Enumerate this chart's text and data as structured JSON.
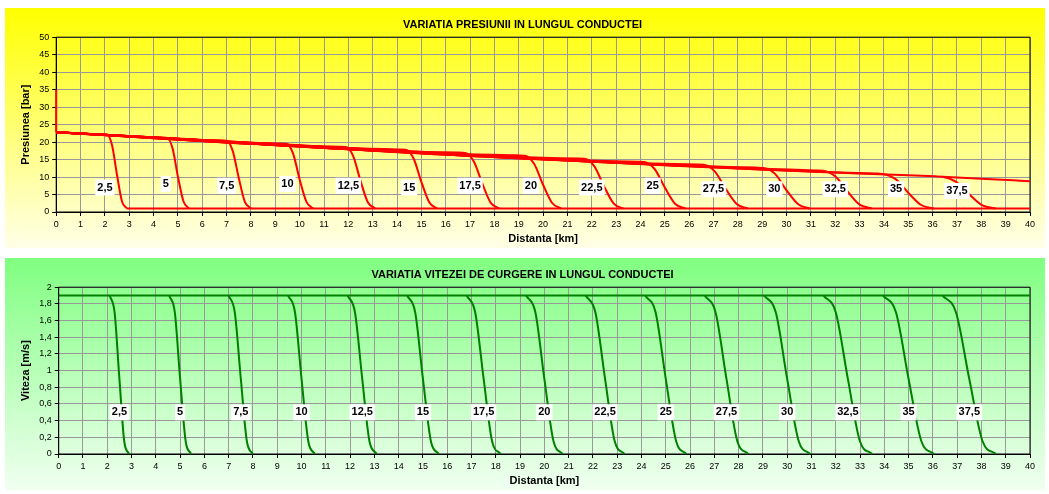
{
  "chart_data": [
    {
      "type": "line",
      "title": "VARIATIA PRESIUNII IN LUNGUL CONDUCTEI",
      "xlabel": "Distanta [km]",
      "ylabel": "Presiunea [bar]",
      "xlim": [
        0,
        40
      ],
      "xticks": [
        0,
        1,
        2,
        3,
        4,
        5,
        6,
        7,
        8,
        9,
        10,
        11,
        12,
        13,
        14,
        15,
        16,
        17,
        18,
        19,
        20,
        21,
        22,
        23,
        24,
        25,
        26,
        27,
        28,
        29,
        30,
        31,
        32,
        33,
        34,
        35,
        36,
        37,
        38,
        39,
        40
      ],
      "ylim": [
        0,
        50
      ],
      "yticks": [
        0,
        5,
        10,
        15,
        20,
        25,
        30,
        35,
        40,
        45,
        50
      ],
      "grid": true,
      "marker": "none",
      "line_style": "solid",
      "series": [
        {
          "color": "#ff0000",
          "x": [
            0,
            1.8,
            2.1,
            2.3,
            2.5,
            2.7,
            2.9
          ],
          "values": [
            22.8,
            22.2,
            22.1,
            18.9,
            10.5,
            3.1,
            1
          ]
        },
        {
          "color": "#ff0000",
          "x": [
            0,
            4.25,
            4.55,
            4.78,
            5,
            5.23,
            5.45
          ],
          "values": [
            22.8,
            21.3,
            21.2,
            18.2,
            10.1,
            3.0,
            1
          ]
        },
        {
          "color": "#ff0000",
          "x": [
            0,
            6.7,
            7.0,
            7.25,
            7.5,
            7.75,
            8.0
          ],
          "values": [
            22.8,
            20.5,
            20.4,
            17.5,
            9.7,
            2.9,
            1
          ]
        },
        {
          "color": "#ff0000",
          "x": [
            0,
            9.15,
            9.45,
            9.73,
            10,
            10.28,
            10.55
          ],
          "values": [
            22.8,
            19.6,
            19.5,
            16.7,
            9.3,
            2.9,
            1
          ]
        },
        {
          "color": "#ff0000",
          "x": [
            0,
            11.6,
            11.9,
            12.2,
            12.5,
            12.8,
            13.1
          ],
          "values": [
            22.8,
            18.7,
            18.6,
            16.0,
            8.9,
            2.8,
            1
          ]
        },
        {
          "color": "#ff0000",
          "x": [
            0,
            14.05,
            14.35,
            14.68,
            15,
            15.33,
            15.65
          ],
          "values": [
            22.8,
            17.9,
            17.8,
            15.3,
            8.6,
            2.7,
            1
          ]
        },
        {
          "color": "#ff0000",
          "x": [
            0,
            16.5,
            16.8,
            17.15,
            17.5,
            17.85,
            18.2
          ],
          "values": [
            22.8,
            17.0,
            16.9,
            14.5,
            8.2,
            2.6,
            1
          ]
        },
        {
          "color": "#ff0000",
          "x": [
            0,
            18.95,
            19.25,
            19.63,
            20,
            20.38,
            20.75
          ],
          "values": [
            22.8,
            16.2,
            16.1,
            13.8,
            7.8,
            2.5,
            1
          ]
        },
        {
          "color": "#ff0000",
          "x": [
            0,
            21.4,
            21.7,
            22.1,
            22.5,
            22.9,
            23.3
          ],
          "values": [
            22.8,
            15.3,
            15.2,
            13.1,
            7.4,
            2.4,
            1
          ]
        },
        {
          "color": "#ff0000",
          "x": [
            0,
            23.85,
            24.15,
            24.58,
            25,
            25.43,
            25.85
          ],
          "values": [
            22.8,
            14.4,
            14.3,
            12.3,
            7.0,
            2.3,
            1
          ]
        },
        {
          "color": "#ff0000",
          "x": [
            0,
            26.3,
            26.6,
            27.05,
            27.5,
            27.95,
            28.4
          ],
          "values": [
            22.8,
            13.6,
            13.5,
            11.6,
            6.6,
            2.3,
            1
          ]
        },
        {
          "color": "#ff0000",
          "x": [
            0,
            28.75,
            29.05,
            29.53,
            30,
            30.48,
            30.95
          ],
          "values": [
            22.8,
            12.7,
            12.6,
            10.9,
            6.2,
            2.2,
            1
          ]
        },
        {
          "color": "#ff0000",
          "x": [
            0,
            31.2,
            31.5,
            32.0,
            32.5,
            33.0,
            33.5
          ],
          "values": [
            22.8,
            11.9,
            11.8,
            10.2,
            5.9,
            2.1,
            1
          ]
        },
        {
          "color": "#ff0000",
          "x": [
            0,
            33.65,
            33.95,
            34.48,
            35,
            35.53,
            36.05
          ],
          "values": [
            22.8,
            11.0,
            10.9,
            9.4,
            5.5,
            2.0,
            1
          ]
        },
        {
          "color": "#ff0000",
          "x": [
            0,
            36.1,
            36.4,
            36.95,
            37.5,
            38.05,
            38.6
          ],
          "values": [
            22.8,
            10.2,
            10.1,
            8.7,
            5.1,
            1.9,
            1
          ]
        },
        {
          "color": "#ff0000",
          "x": [
            36.4,
            40
          ],
          "values": [
            10.1,
            8.8
          ]
        },
        {
          "color": "#ff0000",
          "x": [
            2.9,
            40
          ],
          "values": [
            1,
            1
          ]
        },
        {
          "color": "#ff0000",
          "x": [
            0,
            0
          ],
          "values": [
            22.8,
            35
          ]
        }
      ],
      "annotations": [
        {
          "text": "2,5",
          "x": 2,
          "y": 7
        },
        {
          "text": "5",
          "x": 4.5,
          "y": 8
        },
        {
          "text": "7,5",
          "x": 7,
          "y": 7.5
        },
        {
          "text": "10",
          "x": 9.5,
          "y": 8
        },
        {
          "text": "12,5",
          "x": 12,
          "y": 7.5
        },
        {
          "text": "15",
          "x": 14.5,
          "y": 7
        },
        {
          "text": "17,5",
          "x": 17,
          "y": 7.5
        },
        {
          "text": "20",
          "x": 19.5,
          "y": 7.5
        },
        {
          "text": "22,5",
          "x": 22,
          "y": 7
        },
        {
          "text": "25",
          "x": 24.5,
          "y": 7.5
        },
        {
          "text": "27,5",
          "x": 27,
          "y": 6.5
        },
        {
          "text": "30",
          "x": 29.5,
          "y": 6.5
        },
        {
          "text": "32,5",
          "x": 32,
          "y": 6.5
        },
        {
          "text": "35",
          "x": 34.5,
          "y": 6.5
        },
        {
          "text": "37,5",
          "x": 37,
          "y": 6
        }
      ]
    },
    {
      "type": "line",
      "title": "VARIATIA VITEZEI DE CURGERE IN LUNGUL CONDUCTEI",
      "xlabel": "Distanta [km]",
      "ylabel": "Viteza [m/s]",
      "xlim": [
        0,
        40
      ],
      "xticks": [
        0,
        1,
        2,
        3,
        4,
        5,
        6,
        7,
        8,
        9,
        10,
        11,
        12,
        13,
        14,
        15,
        16,
        17,
        18,
        19,
        20,
        21,
        22,
        23,
        24,
        25,
        26,
        27,
        28,
        29,
        30,
        31,
        32,
        33,
        34,
        35,
        36,
        37,
        38,
        39,
        40
      ],
      "ylim": [
        0,
        2
      ],
      "yticks": [
        0,
        {
          "value": 0.2,
          "label": "0,2"
        },
        {
          "value": 0.4,
          "label": "0,4"
        },
        {
          "value": 0.6,
          "label": "0,6"
        },
        {
          "value": 0.8,
          "label": "0,8"
        },
        1,
        {
          "value": 1.2,
          "label": "1,2"
        },
        {
          "value": 1.4,
          "label": "1,4"
        },
        {
          "value": 1.6,
          "label": "1,6"
        },
        {
          "value": 1.8,
          "label": "1,8"
        },
        2
      ],
      "grid": true,
      "marker": "none",
      "line_style": "solid",
      "series": [
        {
          "color": "#007f00",
          "x": [
            2.1,
            2.3,
            2.5,
            2.7,
            2.9
          ],
          "values": [
            1.9,
            1.7,
            0.9,
            0.15,
            0
          ]
        },
        {
          "color": "#007f00",
          "x": [
            4.55,
            4.78,
            5,
            5.23,
            5.45
          ],
          "values": [
            1.9,
            1.7,
            0.9,
            0.15,
            0
          ]
        },
        {
          "color": "#007f00",
          "x": [
            7.0,
            7.25,
            7.5,
            7.75,
            8.0
          ],
          "values": [
            1.9,
            1.7,
            0.9,
            0.15,
            0
          ]
        },
        {
          "color": "#007f00",
          "x": [
            9.45,
            9.73,
            10,
            10.28,
            10.55
          ],
          "values": [
            1.9,
            1.7,
            0.9,
            0.15,
            0
          ]
        },
        {
          "color": "#007f00",
          "x": [
            11.9,
            12.2,
            12.5,
            12.8,
            13.1
          ],
          "values": [
            1.9,
            1.7,
            0.9,
            0.15,
            0
          ]
        },
        {
          "color": "#007f00",
          "x": [
            14.35,
            14.68,
            15,
            15.33,
            15.65
          ],
          "values": [
            1.9,
            1.7,
            0.9,
            0.15,
            0
          ]
        },
        {
          "color": "#007f00",
          "x": [
            16.8,
            17.15,
            17.5,
            17.85,
            18.2
          ],
          "values": [
            1.9,
            1.7,
            0.9,
            0.15,
            0
          ]
        },
        {
          "color": "#007f00",
          "x": [
            19.25,
            19.63,
            20,
            20.38,
            20.75
          ],
          "values": [
            1.9,
            1.7,
            0.9,
            0.15,
            0
          ]
        },
        {
          "color": "#007f00",
          "x": [
            21.7,
            22.1,
            22.5,
            22.9,
            23.3
          ],
          "values": [
            1.9,
            1.7,
            0.9,
            0.15,
            0
          ]
        },
        {
          "color": "#007f00",
          "x": [
            24.15,
            24.58,
            25,
            25.43,
            25.85
          ],
          "values": [
            1.9,
            1.7,
            0.9,
            0.15,
            0
          ]
        },
        {
          "color": "#007f00",
          "x": [
            26.6,
            27.05,
            27.5,
            27.95,
            28.4
          ],
          "values": [
            1.9,
            1.7,
            0.9,
            0.15,
            0
          ]
        },
        {
          "color": "#007f00",
          "x": [
            29.05,
            29.53,
            30,
            30.48,
            30.95
          ],
          "values": [
            1.9,
            1.7,
            0.9,
            0.15,
            0
          ]
        },
        {
          "color": "#007f00",
          "x": [
            31.5,
            32.0,
            32.5,
            33.0,
            33.5
          ],
          "values": [
            1.9,
            1.7,
            0.9,
            0.15,
            0
          ]
        },
        {
          "color": "#007f00",
          "x": [
            33.95,
            34.48,
            35,
            35.53,
            36.05
          ],
          "values": [
            1.9,
            1.7,
            0.9,
            0.15,
            0
          ]
        },
        {
          "color": "#007f00",
          "x": [
            36.4,
            36.95,
            37.5,
            38.05,
            38.6
          ],
          "values": [
            1.9,
            1.7,
            0.9,
            0.15,
            0
          ]
        },
        {
          "color": "#007f00",
          "x": [
            0,
            40
          ],
          "values": [
            1.9,
            1.9
          ]
        }
      ],
      "annotations": [
        {
          "text": "2,5",
          "x": 2.5,
          "y": 0.5
        },
        {
          "text": "5",
          "x": 5,
          "y": 0.5
        },
        {
          "text": "7,5",
          "x": 7.5,
          "y": 0.5
        },
        {
          "text": "10",
          "x": 10,
          "y": 0.5
        },
        {
          "text": "12,5",
          "x": 12.5,
          "y": 0.5
        },
        {
          "text": "15",
          "x": 15,
          "y": 0.5
        },
        {
          "text": "17,5",
          "x": 17.5,
          "y": 0.5
        },
        {
          "text": "20",
          "x": 20,
          "y": 0.5
        },
        {
          "text": "22,5",
          "x": 22.5,
          "y": 0.5
        },
        {
          "text": "25",
          "x": 25,
          "y": 0.5
        },
        {
          "text": "27,5",
          "x": 27.5,
          "y": 0.5
        },
        {
          "text": "30",
          "x": 30,
          "y": 0.5
        },
        {
          "text": "32,5",
          "x": 32.5,
          "y": 0.5
        },
        {
          "text": "35",
          "x": 35,
          "y": 0.5
        },
        {
          "text": "37,5",
          "x": 37.5,
          "y": 0.5
        }
      ]
    }
  ]
}
